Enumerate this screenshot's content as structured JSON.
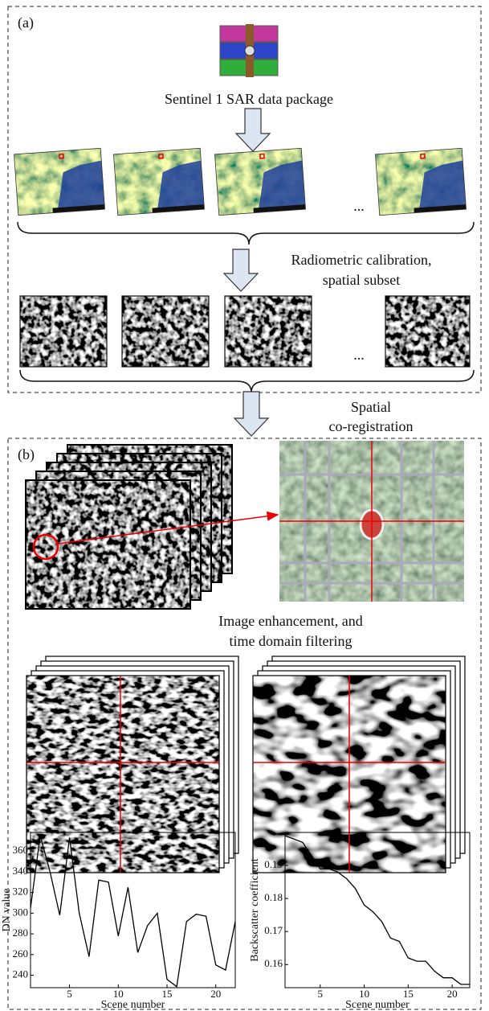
{
  "panel_a": {
    "label": "(a)",
    "package": "Sentinel 1 SAR data package",
    "ellipsis_1": "...",
    "step": [
      "Radiometric calibration,",
      "spatial subset"
    ],
    "ellipsis_2": "..."
  },
  "transition": {
    "step": [
      "Spatial",
      "co-registration"
    ]
  },
  "panel_b": {
    "label": "(b)",
    "step": [
      "Image enhancement, and",
      "time domain filtering"
    ]
  },
  "chart_data": [
    {
      "type": "line",
      "xlabel": "Scene number",
      "ylabel": "DN value",
      "x": [
        1,
        2,
        3,
        4,
        5,
        6,
        7,
        8,
        9,
        10,
        11,
        12,
        13,
        14,
        15,
        16,
        17,
        18,
        19,
        20,
        21,
        22
      ],
      "series": [
        {
          "color": "#000000",
          "values": [
            305,
            375,
            340,
            298,
            373,
            300,
            258,
            332,
            330,
            278,
            325,
            262,
            288,
            300,
            236,
            229,
            292,
            299,
            297,
            250,
            245,
            292
          ]
        }
      ],
      "xlim": [
        1,
        22
      ],
      "ylim": [
        228,
        378
      ],
      "xticks": [
        5,
        10,
        15,
        20
      ],
      "yticks": [
        240,
        260,
        280,
        300,
        320,
        340,
        360
      ]
    },
    {
      "type": "line",
      "xlabel": "Scene number",
      "ylabel": "Backscatter coefficient",
      "x": [
        1,
        2,
        3,
        4,
        5,
        6,
        7,
        8,
        9,
        10,
        11,
        12,
        13,
        14,
        15,
        16,
        17,
        18,
        19,
        20,
        21,
        22
      ],
      "series": [
        {
          "color": "#000000",
          "values": [
            0.199,
            0.198,
            0.197,
            0.193,
            0.189,
            0.189,
            0.188,
            0.186,
            0.183,
            0.178,
            0.176,
            0.173,
            0.168,
            0.167,
            0.162,
            0.161,
            0.161,
            0.158,
            0.156,
            0.156,
            0.154,
            0.154
          ]
        }
      ],
      "xlim": [
        1,
        22
      ],
      "ylim": [
        0.153,
        0.2
      ],
      "xticks": [
        5,
        10,
        15,
        20
      ],
      "yticks": [
        0.16,
        0.17,
        0.18,
        0.19
      ]
    }
  ]
}
